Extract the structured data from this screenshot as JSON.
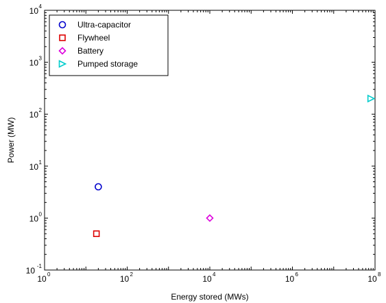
{
  "chart_data": {
    "type": "scatter",
    "xlabel": "Energy stored (MWs)",
    "ylabel": "Power (MW)",
    "xscale": "log",
    "yscale": "log",
    "xlim": [
      1,
      100000000
    ],
    "ylim": [
      0.1,
      10000
    ],
    "grid": false,
    "legend_position": "top-left",
    "x_ticks": [
      {
        "base": "10",
        "exp": "0",
        "value": 1
      },
      {
        "base": "10",
        "exp": "2",
        "value": 100
      },
      {
        "base": "10",
        "exp": "4",
        "value": 10000
      },
      {
        "base": "10",
        "exp": "6",
        "value": 1000000
      },
      {
        "base": "10",
        "exp": "8",
        "value": 100000000
      }
    ],
    "y_ticks": [
      {
        "base": "10",
        "exp": "-1",
        "value": 0.1
      },
      {
        "base": "10",
        "exp": "0",
        "value": 1
      },
      {
        "base": "10",
        "exp": "1",
        "value": 10
      },
      {
        "base": "10",
        "exp": "2",
        "value": 100
      },
      {
        "base": "10",
        "exp": "3",
        "value": 1000
      },
      {
        "base": "10",
        "exp": "4",
        "value": 10000
      }
    ],
    "series": [
      {
        "name": "Ultra-capacitor",
        "marker": "circle",
        "color": "#0000cc",
        "x": [
          20
        ],
        "y": [
          4
        ]
      },
      {
        "name": "Flywheel",
        "marker": "square",
        "color": "#dd0000",
        "x": [
          18
        ],
        "y": [
          0.5
        ]
      },
      {
        "name": "Battery",
        "marker": "diamond",
        "color": "#dd00dd",
        "x": [
          10000
        ],
        "y": [
          1
        ]
      },
      {
        "name": "Pumped storage",
        "marker": "triangle-right",
        "color": "#00cccc",
        "x": [
          80000000
        ],
        "y": [
          200
        ]
      }
    ]
  }
}
